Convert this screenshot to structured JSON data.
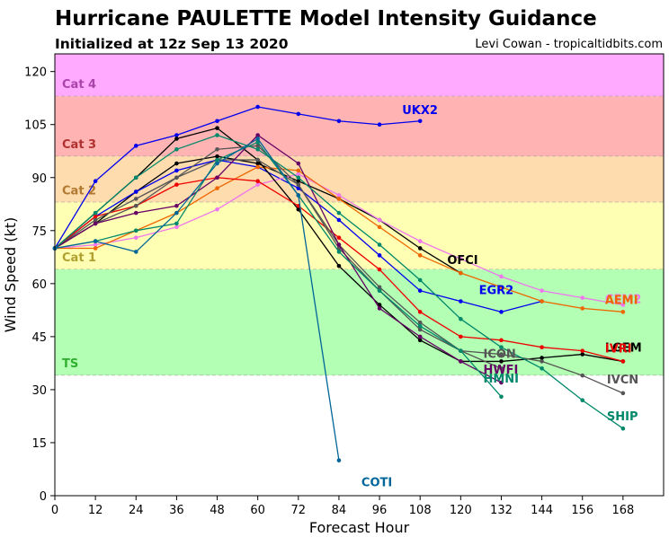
{
  "header": {
    "title": "Hurricane PAULETTE Model Intensity Guidance",
    "subtitle": "Initialized at 12z Sep 13 2020",
    "credit": "Levi Cowan - tropicaltidbits.com"
  },
  "chart_data": {
    "type": "line",
    "title": "Hurricane PAULETTE Model Intensity Guidance",
    "subtitle": "Initialized at 12z Sep 13 2020",
    "xlabel": "Forecast Hour",
    "ylabel": "Wind Speed (kt)",
    "xlim": [
      0,
      180
    ],
    "ylim": [
      0,
      125
    ],
    "xticks": [
      0,
      12,
      24,
      36,
      48,
      60,
      72,
      84,
      96,
      108,
      120,
      132,
      144,
      156,
      168
    ],
    "yticks": [
      0,
      15,
      30,
      45,
      60,
      75,
      90,
      105,
      120
    ],
    "grid": false,
    "bands": [
      {
        "name": "Cat 4",
        "from": 113,
        "to": 125,
        "color": "#ffaaff",
        "label_color": "#aa44aa"
      },
      {
        "name": "Cat 3",
        "from": 96,
        "to": 113,
        "color": "#ffb3b3",
        "label_color": "#b03030"
      },
      {
        "name": "Cat 2",
        "from": 83,
        "to": 96,
        "color": "#ffdcad",
        "label_color": "#b07830"
      },
      {
        "name": "Cat 1",
        "from": 64,
        "to": 83,
        "color": "#ffffb3",
        "label_color": "#b0a030"
      },
      {
        "name": "TS",
        "from": 34,
        "to": 64,
        "color": "#b3ffb3",
        "label_color": "#30b030"
      },
      {
        "name": "",
        "from": 0,
        "to": 34,
        "color": "#ffffff",
        "label_color": "#000000"
      }
    ],
    "series": [
      {
        "name": "UKX2",
        "color": "#0000ee",
        "x": [
          0,
          12,
          24,
          36,
          48,
          60,
          72,
          84,
          96,
          108
        ],
        "y": [
          70,
          89,
          99,
          102,
          106,
          110,
          108,
          106,
          105,
          106
        ]
      },
      {
        "name": "OFCI",
        "color": "#000000",
        "x": [
          0,
          12,
          24,
          36,
          48,
          60,
          72,
          84,
          96,
          108,
          120
        ],
        "y": [
          70,
          77,
          86,
          94,
          96,
          94,
          89,
          84,
          78,
          70,
          63
        ]
      },
      {
        "name": "EGR2",
        "color": "#0000ee",
        "x": [
          0,
          12,
          24,
          36,
          48,
          60,
          72,
          84,
          96,
          108,
          120,
          132,
          144
        ],
        "y": [
          70,
          79,
          86,
          92,
          95,
          93,
          87,
          78,
          68,
          58,
          55,
          52,
          55
        ]
      },
      {
        "name": "CEM2",
        "color": "#ee77ee",
        "x": [
          0,
          12,
          24,
          36,
          48,
          60,
          72,
          84,
          96,
          108,
          120,
          132,
          144,
          156,
          168
        ],
        "y": [
          70,
          71,
          73,
          76,
          81,
          88,
          91,
          85,
          78,
          72,
          67,
          62,
          58,
          56,
          54
        ]
      },
      {
        "name": "AEMI",
        "color": "#ee6600",
        "x": [
          0,
          12,
          24,
          36,
          48,
          60,
          72,
          84,
          96,
          108,
          120,
          132,
          144,
          156,
          168
        ],
        "y": [
          70,
          70,
          75,
          80,
          87,
          93,
          92,
          84,
          76,
          68,
          63,
          59,
          55,
          53,
          52
        ]
      },
      {
        "name": "LGEM",
        "color": "#000000",
        "x": [
          0,
          12,
          24,
          36,
          48,
          60,
          72,
          84,
          96,
          108,
          120,
          132,
          144,
          156,
          168
        ],
        "y": [
          70,
          80,
          90,
          101,
          104,
          95,
          81,
          65,
          54,
          44,
          38,
          38,
          39,
          40,
          38
        ]
      },
      {
        "name": "IVRI",
        "color": "#ee0000",
        "x": [
          0,
          12,
          24,
          36,
          48,
          60,
          72,
          84,
          96,
          108,
          120,
          132,
          144,
          156,
          168
        ],
        "y": [
          70,
          79,
          82,
          88,
          90,
          89,
          82,
          73,
          64,
          52,
          45,
          44,
          42,
          41,
          38
        ]
      },
      {
        "name": "ICON",
        "color": "#555555",
        "x": [
          0,
          12,
          24,
          36,
          48,
          60,
          72,
          84,
          96,
          108,
          120,
          132
        ],
        "y": [
          70,
          77,
          82,
          90,
          98,
          99,
          88,
          71,
          59,
          49,
          41,
          36
        ]
      },
      {
        "name": "IVCN",
        "color": "#555555",
        "x": [
          0,
          12,
          24,
          36,
          48,
          60,
          72,
          84,
          96,
          108,
          120,
          132,
          144,
          156,
          168
        ],
        "y": [
          70,
          78,
          84,
          90,
          95,
          95,
          88,
          70,
          58,
          47,
          41,
          40,
          38,
          34,
          29
        ]
      },
      {
        "name": "HWFI",
        "color": "#660066",
        "x": [
          0,
          12,
          24,
          36,
          48,
          60,
          72,
          84,
          96,
          108,
          120,
          132
        ],
        "y": [
          70,
          77,
          80,
          82,
          90,
          102,
          94,
          71,
          53,
          45,
          38,
          32
        ]
      },
      {
        "name": "HMNI",
        "color": "#00886a",
        "x": [
          0,
          12,
          24,
          36,
          48,
          60,
          72,
          84,
          96,
          108,
          120,
          132
        ],
        "y": [
          70,
          72,
          75,
          77,
          95,
          100,
          85,
          69,
          58,
          48,
          41,
          28
        ]
      },
      {
        "name": "SHIP",
        "color": "#00886a",
        "x": [
          0,
          12,
          24,
          36,
          48,
          60,
          72,
          84,
          96,
          108,
          120,
          132,
          144,
          156,
          168
        ],
        "y": [
          70,
          80,
          90,
          98,
          102,
          98,
          90,
          80,
          71,
          61,
          50,
          42,
          36,
          27,
          19
        ]
      },
      {
        "name": "COTI",
        "color": "#006699",
        "x": [
          0,
          12,
          24,
          36,
          48,
          60,
          72,
          84
        ],
        "y": [
          70,
          72,
          69,
          80,
          94,
          101,
          85,
          10
        ]
      }
    ]
  }
}
